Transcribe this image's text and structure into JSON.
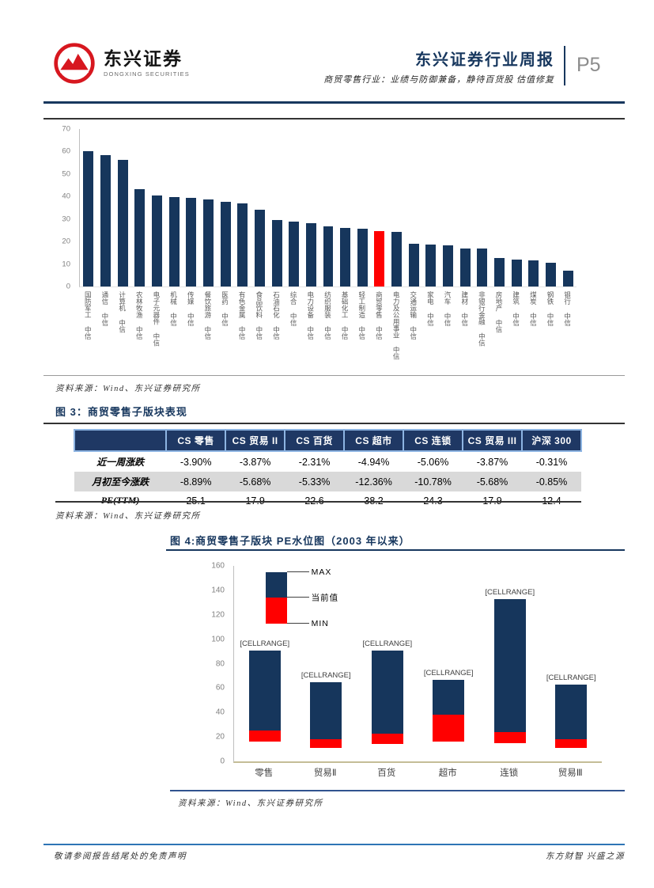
{
  "header": {
    "brand_cn": "东兴证券",
    "brand_en": "DONGXING SECURITIES",
    "report_title": "东兴证券行业周报",
    "report_subtitle": "商贸零售行业：业绩与防御兼备，静待百货股 估值修复",
    "page_number": "P5"
  },
  "figure1": {
    "source": "资料来源：Wind、东兴证券研究所"
  },
  "figure3": {
    "title": "图 3：商贸零售子版块表现",
    "table": {
      "columns": [
        "",
        "CS 零售",
        "CS 贸易 II",
        "CS 百货",
        "CS 超市",
        "CS 连锁",
        "CS 贸易 III",
        "沪深 300"
      ],
      "rows": [
        {
          "label": "近一周涨跌",
          "values": [
            "-3.90%",
            "-3.87%",
            "-2.31%",
            "-4.94%",
            "-5.06%",
            "-3.87%",
            "-0.31%"
          ]
        },
        {
          "label": "月初至今涨跌",
          "values": [
            "-8.89%",
            "-5.68%",
            "-5.33%",
            "-12.36%",
            "-10.78%",
            "-5.68%",
            "-0.85%"
          ]
        },
        {
          "label": "PE(TTM)",
          "values": [
            "25.1",
            "17.9",
            "22.6",
            "38.2",
            "24.3",
            "17.9",
            "12.4"
          ]
        }
      ]
    },
    "source": "资料来源：Wind、东兴证券研究所"
  },
  "figure4": {
    "title": "图 4:商贸零售子版块 PE水位图（2003 年以来）",
    "source": "资料来源：Wind、东兴证券研究所"
  },
  "footer": {
    "left": "敬请参阅报告结尾处的免责声明",
    "right": "东方财智 兴盛之源"
  },
  "colors": {
    "navy": "#16365C",
    "red": "#FF0000",
    "accent_rule": "#17375E",
    "table_header_bg": "#1F3864",
    "table_border": "#8DB4E2",
    "gray_row": "#D9D9D9",
    "axis_tan": "#C4BD97"
  },
  "chart_data": [
    {
      "type": "bar",
      "title": "",
      "categories": [
        "国防军工 中信",
        "通信 中信",
        "计算机 中信",
        "农林牧渔 中信",
        "电子元器件 中信",
        "机械 中信",
        "传媒 中信",
        "餐饮旅游 中信",
        "医药 中信",
        "有色金属 中信",
        "食品饮料 中信",
        "石油石化 中信",
        "综合 中信",
        "电力设备 中信",
        "纺织服装 中信",
        "基础化工 中信",
        "轻工制造 中信",
        "商贸零售 中信",
        "电力及公用事业 中信",
        "交通运输 中信",
        "家电 中信",
        "汽车 中信",
        "建材 中信",
        "非银行金融 中信",
        "房地产 中信",
        "建筑 中信",
        "煤炭 中信",
        "钢铁 中信",
        "银行 中信"
      ],
      "values": [
        60.3,
        58.5,
        56.2,
        43.2,
        40.5,
        39.9,
        39.4,
        38.6,
        37.8,
        37.1,
        34.0,
        29.5,
        28.8,
        28.1,
        26.7,
        26.0,
        25.8,
        24.5,
        24.4,
        19.0,
        18.5,
        18.3,
        17.0,
        16.9,
        12.6,
        11.9,
        11.5,
        10.4,
        6.9
      ],
      "highlight_index": 17,
      "bar_color": "#16365C",
      "highlight_color": "#FF0000",
      "xlabel": "",
      "ylabel": "",
      "ylim": [
        0,
        70
      ],
      "ytick_step": 10,
      "grid": false,
      "legend_position": "none"
    },
    {
      "type": "floating-bar",
      "title": "图 4:商贸零售子版块 PE水位图（2003 年以来）",
      "categories": [
        "零售",
        "贸易Ⅱ",
        "百货",
        "超市",
        "连锁",
        "贸易Ⅲ"
      ],
      "series": [
        {
          "name": "MIN",
          "values": [
            16,
            11,
            14,
            16,
            15,
            11
          ]
        },
        {
          "name": "当前值",
          "values": [
            25.1,
            17.9,
            22.6,
            38.2,
            24.3,
            17.9
          ]
        },
        {
          "name": "MAX",
          "values": [
            91,
            65,
            91,
            67,
            133,
            63
          ]
        }
      ],
      "bar_labels": [
        "[CELLRANGE]",
        "[CELLRANGE]",
        "[CELLRANGE]",
        "[CELLRANGE]",
        "[CELLRANGE]",
        "[CELLRANGE]"
      ],
      "legend": {
        "items": [
          "MAX",
          "当前值",
          "MIN"
        ],
        "sample": {
          "min": 113,
          "current": 134,
          "max": 155
        }
      },
      "colors": {
        "range": "#16365C",
        "current_fill": "#FF0000",
        "axis": "#C4BD97"
      },
      "xlabel": "",
      "ylabel": "",
      "ylim": [
        0,
        160
      ],
      "ytick_step": 20,
      "grid": false,
      "legend_position": "top-left-inside"
    }
  ]
}
